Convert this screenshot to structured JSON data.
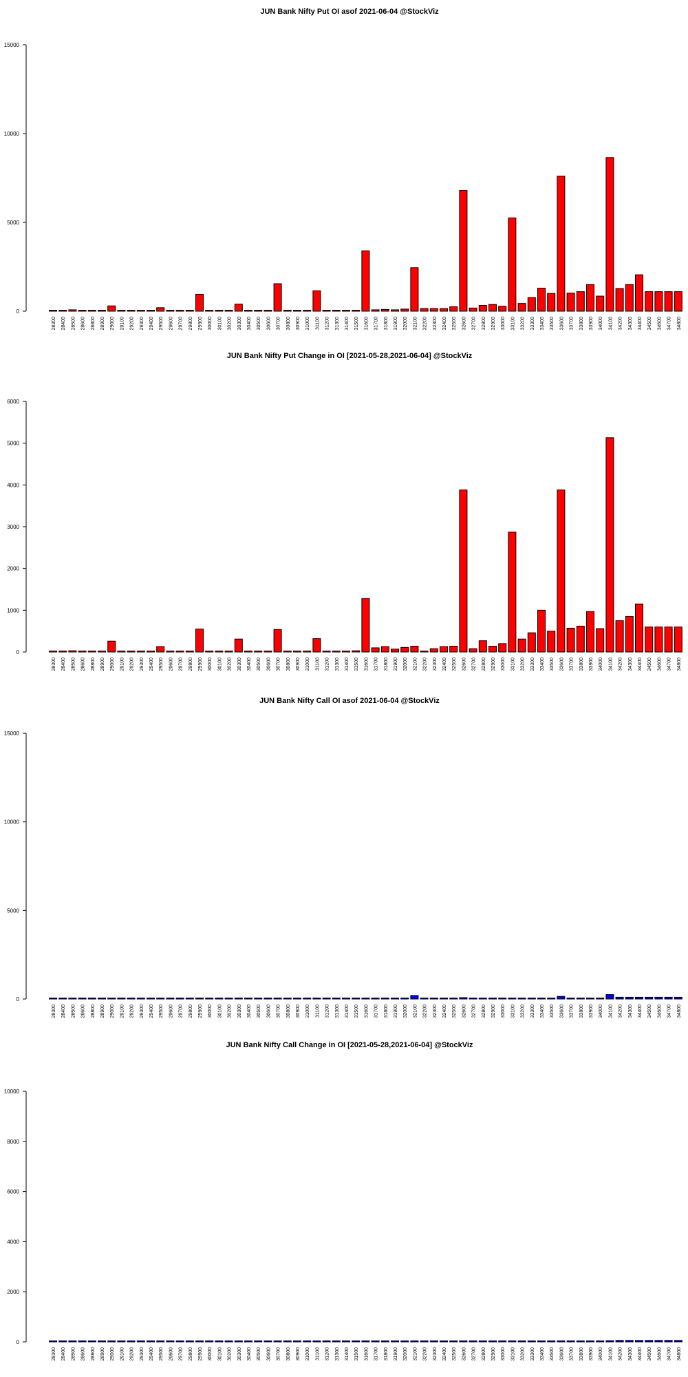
{
  "page": {
    "background": "#ffffff"
  },
  "strikes": [
    "28300",
    "28400",
    "28500",
    "28600",
    "28800",
    "28900",
    "29000",
    "29100",
    "29200",
    "29300",
    "29400",
    "29500",
    "29600",
    "29700",
    "29800",
    "29900",
    "30000",
    "30100",
    "30200",
    "30300",
    "30400",
    "30500",
    "30600",
    "30700",
    "30800",
    "30900",
    "31000",
    "31100",
    "31200",
    "31300",
    "31400",
    "31500",
    "31600",
    "31700",
    "31800",
    "31900",
    "32000",
    "32100",
    "32200",
    "32300",
    "32400",
    "32500",
    "32600",
    "32700",
    "32800",
    "32900",
    "33000",
    "33100",
    "33200",
    "33300",
    "33400",
    "33500",
    "33600",
    "33700",
    "33800",
    "33900",
    "34000",
    "34100",
    "34200",
    "34300",
    "34400",
    "34500",
    "34600",
    "34700",
    "34800"
  ],
  "chart_data": [
    {
      "type": "bar",
      "title": "JUN Bank Nifty Put OI asof 2021-06-04 @StockViz",
      "xlabel": "",
      "ylabel": "",
      "ylim": [
        0,
        15000
      ],
      "yticks": [
        0,
        5000,
        10000,
        15000
      ],
      "bar_color": "#ff0000",
      "values": [
        20,
        20,
        80,
        20,
        20,
        20,
        300,
        20,
        20,
        20,
        20,
        200,
        20,
        20,
        20,
        950,
        20,
        20,
        20,
        400,
        20,
        20,
        20,
        1550,
        20,
        20,
        20,
        1150,
        20,
        20,
        20,
        20,
        3400,
        80,
        100,
        80,
        120,
        2450,
        150,
        150,
        150,
        250,
        6800,
        180,
        330,
        380,
        280,
        5250,
        440,
        770,
        1300,
        1000,
        7600,
        1020,
        1100,
        1500,
        850,
        8650,
        1280,
        1500,
        2050,
        1100,
        1100,
        1100,
        1100
      ]
    },
    {
      "type": "bar",
      "title": "JUN Bank Nifty Put Change in OI [2021-05-28,2021-06-04] @StockViz",
      "xlabel": "",
      "ylabel": "",
      "ylim": [
        0,
        6000
      ],
      "yticks": [
        0,
        1000,
        2000,
        3000,
        4000,
        5000,
        6000
      ],
      "bar_color": "#ff0000",
      "values": [
        0,
        0,
        30,
        0,
        0,
        0,
        260,
        0,
        0,
        0,
        0,
        130,
        0,
        0,
        0,
        550,
        0,
        0,
        0,
        310,
        0,
        0,
        0,
        540,
        0,
        0,
        0,
        320,
        10,
        10,
        10,
        30,
        1280,
        100,
        130,
        70,
        110,
        140,
        20,
        80,
        130,
        140,
        3880,
        80,
        270,
        140,
        200,
        2870,
        310,
        460,
        1000,
        500,
        3880,
        570,
        620,
        970,
        560,
        5130,
        750,
        850,
        1150,
        600,
        600,
        600,
        600
      ]
    },
    {
      "type": "bar",
      "title": "JUN Bank Nifty Call OI asof 2021-06-04 @StockViz",
      "xlabel": "",
      "ylabel": "",
      "ylim": [
        0,
        15000
      ],
      "yticks": [
        0,
        5000,
        10000,
        15000
      ],
      "bar_color": "#0000ff",
      "values": [
        0,
        0,
        0,
        0,
        0,
        0,
        0,
        0,
        0,
        0,
        0,
        0,
        0,
        0,
        0,
        0,
        0,
        0,
        0,
        0,
        0,
        0,
        0,
        0,
        0,
        0,
        0,
        0,
        0,
        0,
        0,
        0,
        30,
        0,
        0,
        0,
        0,
        200,
        0,
        0,
        0,
        0,
        80,
        0,
        0,
        0,
        0,
        50,
        0,
        0,
        0,
        0,
        150,
        0,
        0,
        0,
        0,
        250,
        100,
        100,
        100,
        100,
        100,
        100,
        100
      ]
    },
    {
      "type": "bar",
      "title": "JUN Bank Nifty Call Change in OI [2021-05-28,2021-06-04] @StockViz",
      "xlabel": "",
      "ylabel": "",
      "ylim": [
        0,
        10000
      ],
      "yticks": [
        0,
        2000,
        4000,
        6000,
        8000,
        10000
      ],
      "bar_color": "#0000ff",
      "values": [
        0,
        0,
        0,
        0,
        0,
        0,
        0,
        0,
        0,
        0,
        0,
        0,
        0,
        0,
        0,
        0,
        0,
        0,
        0,
        0,
        0,
        0,
        0,
        0,
        0,
        0,
        0,
        0,
        0,
        0,
        0,
        0,
        0,
        0,
        0,
        0,
        0,
        0,
        0,
        0,
        0,
        0,
        0,
        0,
        0,
        0,
        0,
        0,
        0,
        0,
        0,
        0,
        0,
        10,
        0,
        0,
        30,
        50,
        60,
        60,
        60,
        60,
        60,
        60,
        60
      ]
    }
  ]
}
